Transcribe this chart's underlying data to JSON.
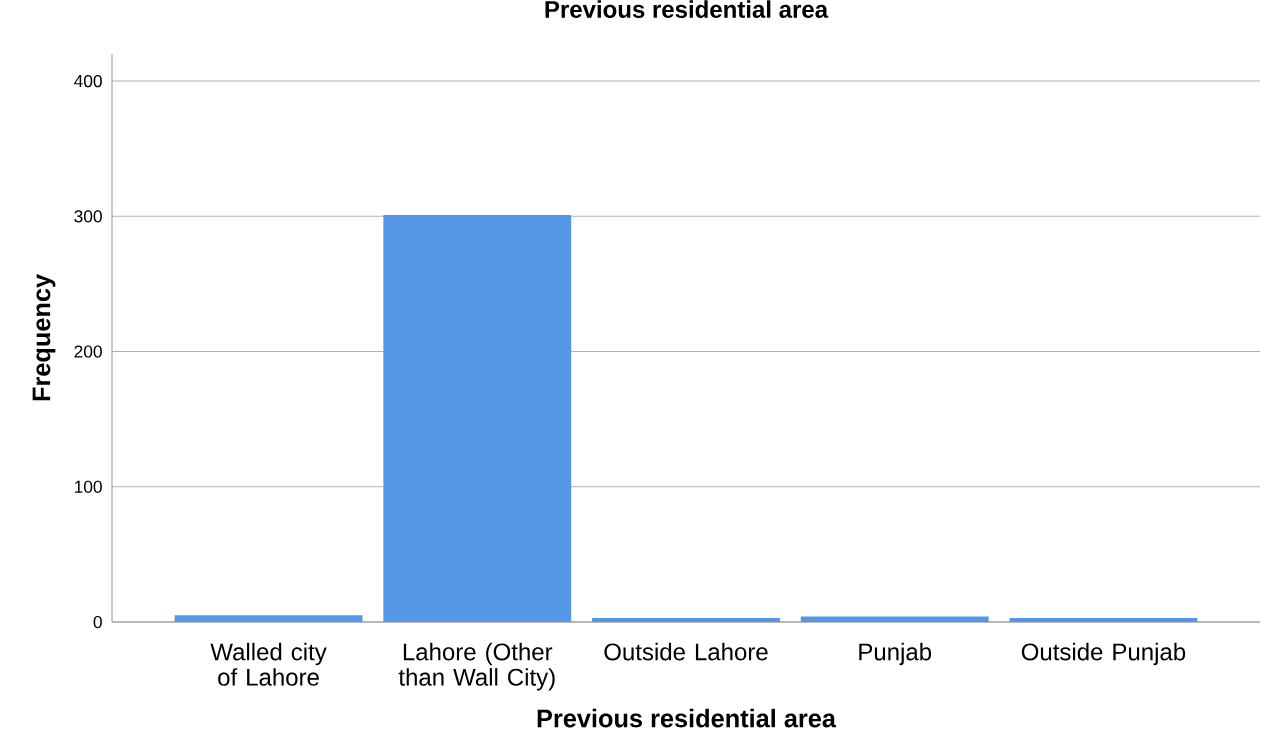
{
  "chart_data": {
    "type": "bar",
    "title": "Previous residential area",
    "xlabel": "Previous residential area",
    "ylabel": "Frequency",
    "categories": [
      "Walled city of Lahore",
      "Lahore (Other than Wall City)",
      "Outside Lahore",
      "Punjab",
      "Outside Punjab"
    ],
    "values": [
      5,
      301,
      3,
      4,
      3
    ],
    "color": "#5596e6",
    "ylim": [
      0,
      420
    ],
    "yticks": [
      0,
      100,
      200,
      300,
      400
    ],
    "grid": "y"
  }
}
